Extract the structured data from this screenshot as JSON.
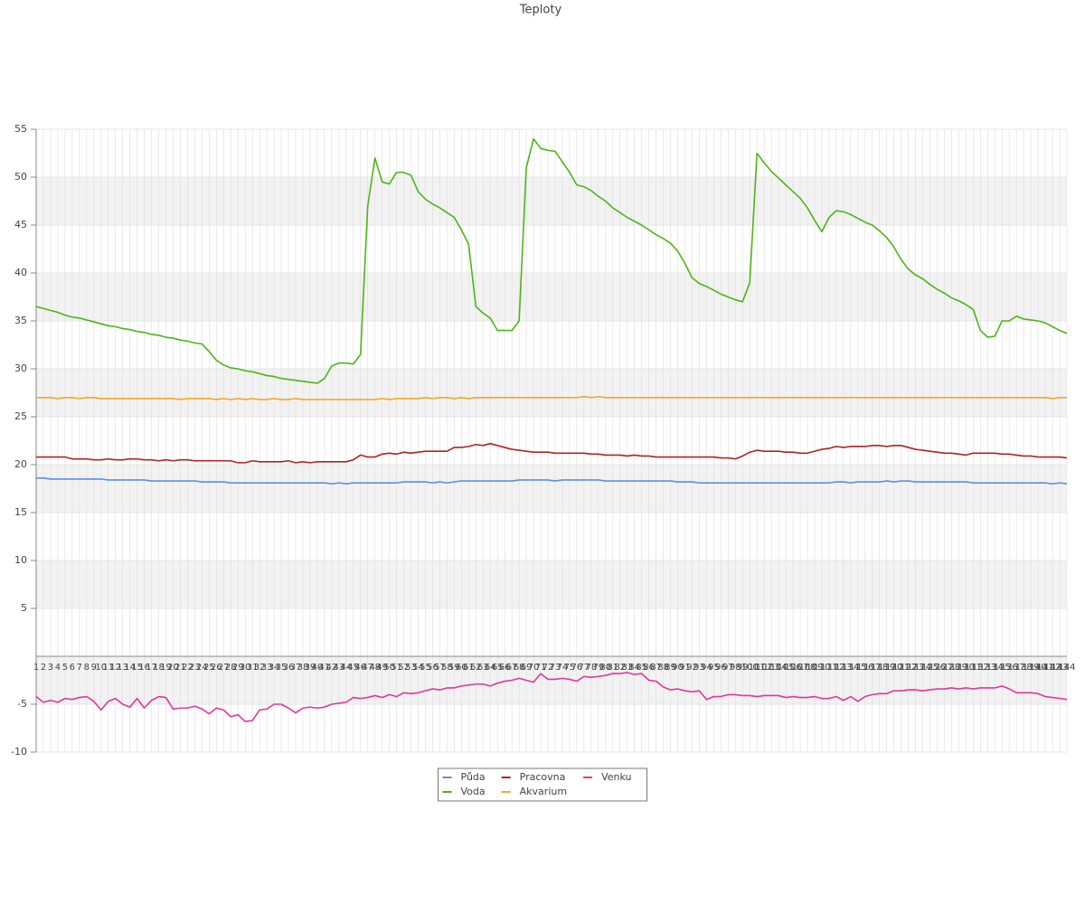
{
  "chart_data": {
    "type": "line",
    "title": "Teploty",
    "categories": [
      "1",
      "2",
      "3",
      "4",
      "5",
      "6",
      "7",
      "8",
      "9",
      "10",
      "11",
      "12",
      "13",
      "14",
      "15",
      "16",
      "17",
      "18",
      "19",
      "20",
      "21",
      "22",
      "23",
      "24",
      "25",
      "26",
      "27",
      "28",
      "29",
      "30",
      "31",
      "32",
      "33",
      "34",
      "35",
      "36",
      "37",
      "38",
      "39",
      "40",
      "41",
      "42",
      "43",
      "44",
      "45",
      "46",
      "47",
      "48",
      "49",
      "50",
      "51",
      "52",
      "53",
      "54",
      "55",
      "56",
      "57",
      "58",
      "59",
      "60",
      "61",
      "62",
      "63",
      "64",
      "65",
      "66",
      "67",
      "68",
      "69",
      "70",
      "71",
      "72",
      "73",
      "74",
      "75",
      "76",
      "77",
      "78",
      "79",
      "80",
      "81",
      "82",
      "83",
      "84",
      "85",
      "86",
      "87",
      "88",
      "89",
      "90",
      "91",
      "92",
      "93",
      "94",
      "95",
      "96",
      "97",
      "98",
      "99",
      "100",
      "101",
      "102",
      "103",
      "104",
      "105",
      "106",
      "107",
      "108",
      "109",
      "110",
      "111",
      "112",
      "113",
      "114",
      "115",
      "116",
      "117",
      "118",
      "119",
      "120",
      "121",
      "122",
      "123",
      "124",
      "125",
      "126",
      "127",
      "128",
      "129",
      "130",
      "131",
      "132",
      "133",
      "134",
      "135",
      "136",
      "137",
      "138",
      "139",
      "140",
      "141",
      "142",
      "143",
      "144"
    ],
    "series": [
      {
        "name": "Půda",
        "color": "#5b8ee6",
        "values": [
          18.6,
          18.6,
          18.5,
          18.5,
          18.5,
          18.5,
          18.5,
          18.5,
          18.5,
          18.5,
          18.4,
          18.4,
          18.4,
          18.4,
          18.4,
          18.4,
          18.3,
          18.3,
          18.3,
          18.3,
          18.3,
          18.3,
          18.3,
          18.2,
          18.2,
          18.2,
          18.2,
          18.1,
          18.1,
          18.1,
          18.1,
          18.1,
          18.1,
          18.1,
          18.1,
          18.1,
          18.1,
          18.1,
          18.1,
          18.1,
          18.1,
          18.0,
          18.1,
          18.0,
          18.1,
          18.1,
          18.1,
          18.1,
          18.1,
          18.1,
          18.1,
          18.2,
          18.2,
          18.2,
          18.2,
          18.1,
          18.2,
          18.1,
          18.2,
          18.3,
          18.3,
          18.3,
          18.3,
          18.3,
          18.3,
          18.3,
          18.3,
          18.4,
          18.4,
          18.4,
          18.4,
          18.4,
          18.3,
          18.4,
          18.4,
          18.4,
          18.4,
          18.4,
          18.4,
          18.3,
          18.3,
          18.3,
          18.3,
          18.3,
          18.3,
          18.3,
          18.3,
          18.3,
          18.3,
          18.2,
          18.2,
          18.2,
          18.1,
          18.1,
          18.1,
          18.1,
          18.1,
          18.1,
          18.1,
          18.1,
          18.1,
          18.1,
          18.1,
          18.1,
          18.1,
          18.1,
          18.1,
          18.1,
          18.1,
          18.1,
          18.1,
          18.2,
          18.2,
          18.1,
          18.2,
          18.2,
          18.2,
          18.2,
          18.3,
          18.2,
          18.3,
          18.3,
          18.2,
          18.2,
          18.2,
          18.2,
          18.2,
          18.2,
          18.2,
          18.2,
          18.1,
          18.1,
          18.1,
          18.1,
          18.1,
          18.1,
          18.1,
          18.1,
          18.1,
          18.1,
          18.1,
          18.0,
          18.1,
          18.0
        ]
      },
      {
        "name": "Voda",
        "color": "#4db516",
        "values": [
          36.5,
          36.3,
          36.1,
          35.9,
          35.6,
          35.4,
          35.3,
          35.1,
          34.9,
          34.7,
          34.5,
          34.4,
          34.2,
          34.1,
          33.9,
          33.8,
          33.6,
          33.5,
          33.3,
          33.2,
          33.0,
          32.9,
          32.7,
          32.6,
          31.8,
          30.9,
          30.4,
          30.1,
          30.0,
          29.8,
          29.7,
          29.5,
          29.3,
          29.2,
          29.0,
          28.9,
          28.8,
          28.7,
          28.6,
          28.5,
          29.0,
          30.3,
          30.6,
          30.6,
          30.5,
          31.5,
          47,
          52,
          49.5,
          49.3,
          50.5,
          50.5,
          50.2,
          48.5,
          47.7,
          47.2,
          46.8,
          46.3,
          45.8,
          44.5,
          43,
          36.5,
          35.8,
          35.3,
          34,
          34,
          34,
          35,
          51,
          54,
          53,
          52.8,
          52.7,
          51.6,
          50.5,
          49.2,
          49,
          48.6,
          48,
          47.5,
          46.8,
          46.3,
          45.8,
          45.4,
          45,
          44.5,
          44,
          43.6,
          43.1,
          42.3,
          41,
          39.5,
          38.9,
          38.6,
          38.2,
          37.8,
          37.5,
          37.2,
          37,
          39,
          52.5,
          51.5,
          50.6,
          49.9,
          49.2,
          48.5,
          47.8,
          46.8,
          45.5,
          44.3,
          45.8,
          46.5,
          46.4,
          46.1,
          45.7,
          45.3,
          45.0,
          44.4,
          43.7,
          42.7,
          41.4,
          40.4,
          39.8,
          39.4,
          38.8,
          38.3,
          37.9,
          37.4,
          37.1,
          36.7,
          36.2,
          34.0,
          33.3,
          33.4,
          35,
          35.0,
          35.5,
          35.2,
          35.1,
          35.0,
          34.8,
          34.4,
          34.0,
          33.7
        ]
      },
      {
        "name": "Pracovna",
        "color": "#b22222",
        "values": [
          20.8,
          20.8,
          20.8,
          20.8,
          20.8,
          20.6,
          20.6,
          20.6,
          20.5,
          20.5,
          20.6,
          20.5,
          20.5,
          20.6,
          20.6,
          20.5,
          20.5,
          20.4,
          20.5,
          20.4,
          20.5,
          20.5,
          20.4,
          20.4,
          20.4,
          20.4,
          20.4,
          20.4,
          20.2,
          20.2,
          20.4,
          20.3,
          20.3,
          20.3,
          20.3,
          20.4,
          20.2,
          20.3,
          20.2,
          20.3,
          20.3,
          20.3,
          20.3,
          20.3,
          20.5,
          21.0,
          20.8,
          20.8,
          21.1,
          21.2,
          21.1,
          21.3,
          21.2,
          21.3,
          21.4,
          21.4,
          21.4,
          21.4,
          21.8,
          21.8,
          21.9,
          22.1,
          22.0,
          22.2,
          22.0,
          21.8,
          21.6,
          21.5,
          21.4,
          21.3,
          21.3,
          21.3,
          21.2,
          21.2,
          21.2,
          21.2,
          21.2,
          21.1,
          21.1,
          21.0,
          21.0,
          21.0,
          20.9,
          21.0,
          20.9,
          20.9,
          20.8,
          20.8,
          20.8,
          20.8,
          20.8,
          20.8,
          20.8,
          20.8,
          20.8,
          20.7,
          20.7,
          20.6,
          20.9,
          21.3,
          21.5,
          21.4,
          21.4,
          21.4,
          21.3,
          21.3,
          21.2,
          21.2,
          21.4,
          21.6,
          21.7,
          21.9,
          21.8,
          21.9,
          21.9,
          21.9,
          22.0,
          22.0,
          21.9,
          22.0,
          22.0,
          21.8,
          21.6,
          21.5,
          21.4,
          21.3,
          21.2,
          21.2,
          21.1,
          21.0,
          21.2,
          21.2,
          21.2,
          21.2,
          21.1,
          21.1,
          21.0,
          20.9,
          20.9,
          20.8,
          20.8,
          20.8,
          20.8,
          20.7
        ]
      },
      {
        "name": "Akvarium",
        "color": "#f5a623",
        "values": [
          27.0,
          27.0,
          27.0,
          26.9,
          27.0,
          27.0,
          26.9,
          27.0,
          27.0,
          26.9,
          26.9,
          26.9,
          26.9,
          26.9,
          26.9,
          26.9,
          26.9,
          26.9,
          26.9,
          26.9,
          26.8,
          26.9,
          26.9,
          26.9,
          26.9,
          26.8,
          26.9,
          26.8,
          26.9,
          26.8,
          26.9,
          26.8,
          26.8,
          26.9,
          26.8,
          26.8,
          26.9,
          26.8,
          26.8,
          26.8,
          26.8,
          26.8,
          26.8,
          26.8,
          26.8,
          26.8,
          26.8,
          26.8,
          26.9,
          26.8,
          26.9,
          26.9,
          26.9,
          26.9,
          27.0,
          26.9,
          27.0,
          27.0,
          26.9,
          27.0,
          26.9,
          27.0,
          27.0,
          27.0,
          27.0,
          27.0,
          27.0,
          27.0,
          27.0,
          27.0,
          27.0,
          27.0,
          27.0,
          27.0,
          27.0,
          27.0,
          27.1,
          27.0,
          27.1,
          27.0,
          27.0,
          27.0,
          27.0,
          27.0,
          27.0,
          27.0,
          27.0,
          27.0,
          27.0,
          27.0,
          27.0,
          27.0,
          27.0,
          27.0,
          27.0,
          27.0,
          27.0,
          27.0,
          27.0,
          27.0,
          27.0,
          27.0,
          27.0,
          27.0,
          27.0,
          27.0,
          27.0,
          27.0,
          27.0,
          27.0,
          27.0,
          27.0,
          27.0,
          27.0,
          27.0,
          27.0,
          27.0,
          27.0,
          27.0,
          27.0,
          27.0,
          27.0,
          27.0,
          27.0,
          27.0,
          27.0,
          27.0,
          27.0,
          27.0,
          27.0,
          27.0,
          27.0,
          27.0,
          27.0,
          27.0,
          27.0,
          27.0,
          27.0,
          27.0,
          27.0,
          27.0,
          26.9,
          27.0,
          27.0
        ]
      },
      {
        "name": "Venku",
        "color": "#e6359a",
        "values": [
          -4.2,
          -4.8,
          -4.6,
          -4.8,
          -4.4,
          -4.5,
          -4.3,
          -4.2,
          -4.7,
          -5.6,
          -4.7,
          -4.4,
          -5.0,
          -5.3,
          -4.4,
          -5.4,
          -4.6,
          -4.2,
          -4.3,
          -5.5,
          -5.4,
          -5.4,
          -5.2,
          -5.5,
          -6.0,
          -5.4,
          -5.6,
          -6.3,
          -6.1,
          -6.8,
          -6.7,
          -5.6,
          -5.5,
          -5.0,
          -5.0,
          -5.4,
          -5.9,
          -5.4,
          -5.3,
          -5.4,
          -5.3,
          -5.0,
          -4.9,
          -4.8,
          -4.3,
          -4.4,
          -4.3,
          -4.1,
          -4.3,
          -4.0,
          -4.2,
          -3.8,
          -3.9,
          -3.8,
          -3.6,
          -3.4,
          -3.5,
          -3.3,
          -3.3,
          -3.1,
          -3.0,
          -2.9,
          -2.9,
          -3.1,
          -2.8,
          -2.6,
          -2.5,
          -2.3,
          -2.5,
          -2.7,
          -1.8,
          -2.4,
          -2.4,
          -2.3,
          -2.4,
          -2.6,
          -2.1,
          -2.2,
          -2.1,
          -2.0,
          -1.8,
          -1.8,
          -1.7,
          -1.9,
          -1.8,
          -2.5,
          -2.6,
          -3.2,
          -3.5,
          -3.4,
          -3.6,
          -3.7,
          -3.6,
          -4.5,
          -4.2,
          -4.2,
          -4.0,
          -4.0,
          -4.1,
          -4.1,
          -4.2,
          -4.1,
          -4.1,
          -4.1,
          -4.3,
          -4.2,
          -4.3,
          -4.3,
          -4.2,
          -4.4,
          -4.4,
          -4.2,
          -4.6,
          -4.2,
          -4.7,
          -4.2,
          -4.0,
          -3.9,
          -3.9,
          -3.6,
          -3.6,
          -3.5,
          -3.5,
          -3.6,
          -3.5,
          -3.4,
          -3.4,
          -3.3,
          -3.4,
          -3.3,
          -3.4,
          -3.3,
          -3.3,
          -3.3,
          -3.1,
          -3.4,
          -3.8,
          -3.8,
          -3.8,
          -3.9,
          -4.2,
          -4.3,
          -4.4,
          -4.5
        ]
      }
    ],
    "ylim": [
      -10,
      55
    ],
    "yticks": [
      -10,
      -5,
      5,
      10,
      15,
      20,
      25,
      30,
      35,
      40,
      45,
      50,
      55
    ],
    "grid": true,
    "bands": true,
    "legend": "bottom"
  }
}
